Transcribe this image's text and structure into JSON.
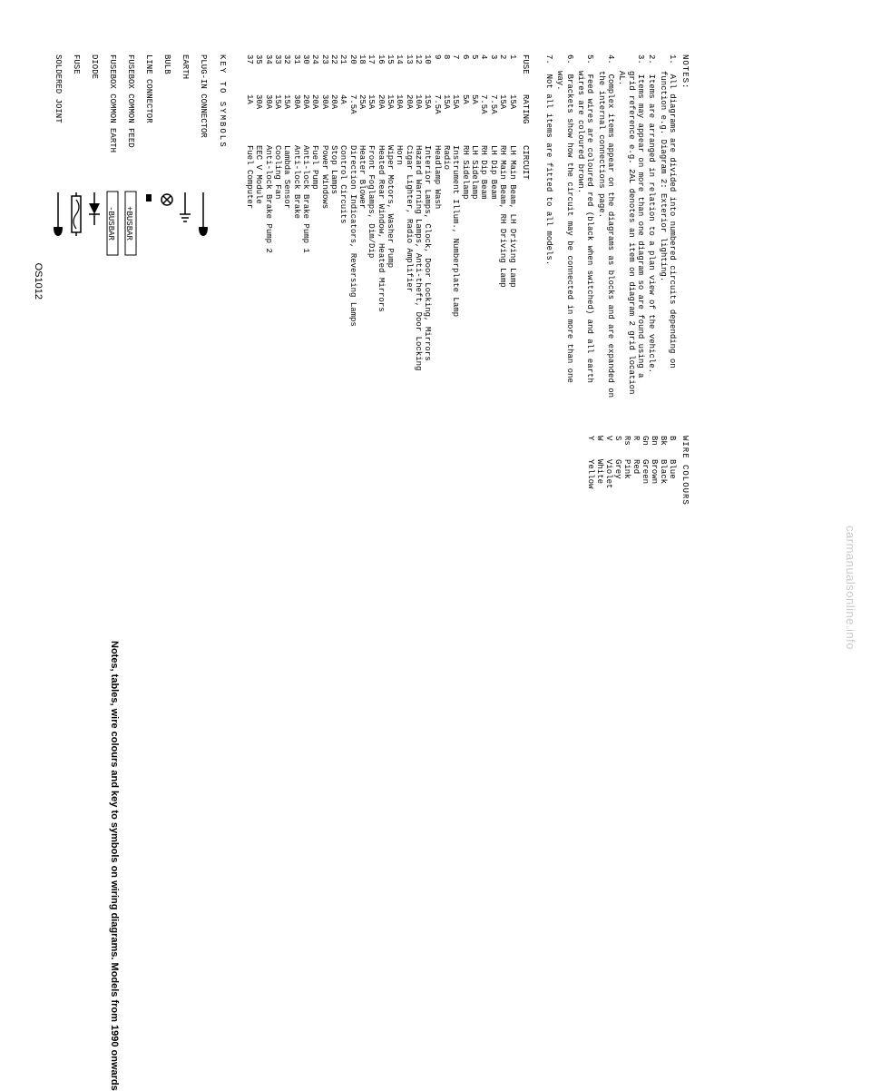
{
  "notes": {
    "header": "NOTES:",
    "items": [
      "1.  All diagrams are divided into numbered circuits depending on function e.g. Diagram 2: Exterior lighting.",
      "2.  Items are arranged in relation to a plan view of the vehicle.",
      "3.  Items may appear on more than one diagram so are found using a grid reference e.g. 2AL denotes an item on diagram 2 grid location AL.",
      "4.  Complex items appear on the diagrams as blocks and are expanded on the internal connections page.",
      "5.  Feed wires are coloured red (black when switched) and all earth wires are coloured brown.",
      "6.  Brackets show how the circuit may be connected in more than one way.",
      "7.  Not all items are fitted to all models."
    ]
  },
  "wire_colours": {
    "header": "WIRE COLOURS",
    "rows": [
      {
        "code": "B",
        "name": "Blue"
      },
      {
        "code": "Bk",
        "name": "Black"
      },
      {
        "code": "Bn",
        "name": "Brown"
      },
      {
        "code": "Gn",
        "name": "Green"
      },
      {
        "code": "R",
        "name": "Red"
      },
      {
        "code": "Rs",
        "name": "Pink"
      },
      {
        "code": "S",
        "name": "Grey"
      },
      {
        "code": "V",
        "name": "Violet"
      },
      {
        "code": "W",
        "name": "White"
      },
      {
        "code": "Y",
        "name": "Yellow"
      }
    ]
  },
  "fuse_table": {
    "headers": [
      "FUSE",
      "RATING",
      "CIRCUIT"
    ],
    "rows": [
      [
        "1",
        "15A",
        "LH Main Beam, LH Driving Lamp"
      ],
      [
        "2",
        "15A",
        "RH Main Beam, RH Driving Lamp"
      ],
      [
        "3",
        "7.5A",
        "LH Dip Beam"
      ],
      [
        "4",
        "7.5A",
        "RH Dip Beam"
      ],
      [
        "5",
        "5A",
        "LH Sidelamp"
      ],
      [
        "6",
        "5A",
        "RH Sidelamp"
      ],
      [
        "7",
        "15A",
        "Instrument Illum., Numberplate Lamp"
      ],
      [
        "8",
        "15A",
        "Radio"
      ],
      [
        "9",
        "7.5A",
        "Headlamp Wash"
      ],
      [
        "10",
        "15A",
        "Interior Lamps, Clock, Door Locking, Mirrors"
      ],
      [
        "12",
        "10A",
        "Hazard Warning Lamps, Anti-theft, Door Locking"
      ],
      [
        "13",
        "20A",
        "Cigar Lighter, Radio Amplifier"
      ],
      [
        "14",
        "10A",
        "Horn"
      ],
      [
        "15",
        "15A",
        "Wiper Motors, Washer Pump"
      ],
      [
        "16",
        "20A",
        "Heated Rear Window, Heated Mirrors"
      ],
      [
        "17",
        "15A",
        "Front Foglamps, Dim/Dip"
      ],
      [
        "18",
        "25A",
        "Heater Blower"
      ],
      [
        "20",
        "7.5A",
        "Direction Indicators, Reversing Lamps"
      ],
      [
        "21",
        "4A",
        "Control Circuits"
      ],
      [
        "22",
        "20A",
        "Stop Lamps"
      ],
      [
        "23",
        "30A",
        "Power Windows"
      ],
      [
        "24",
        "20A",
        "Fuel Pump"
      ],
      [
        "30",
        "20A",
        "Anti-lock Brake Pump 1"
      ],
      [
        "31",
        "30A",
        "Anti-lock Brake"
      ],
      [
        "32",
        "15A",
        "Lambda Sensor"
      ],
      [
        "33",
        "15A",
        "Cooling Fan"
      ],
      [
        "34",
        "30A",
        "Anti-lock Brake Pump 2"
      ],
      [
        "35",
        "30A",
        "EEC V Module"
      ],
      [
        "37",
        "1A",
        "Fuel Computer"
      ]
    ]
  },
  "symbols": {
    "title": "KEY TO SYMBOLS",
    "rows": [
      {
        "label": "PLUG-IN CONNECTOR",
        "glyph": "plugin"
      },
      {
        "label": "EARTH",
        "glyph": "earth"
      },
      {
        "label": "BULB",
        "glyph": "bulb"
      },
      {
        "label": "LINE CONNECTOR",
        "glyph": "lineconn"
      },
      {
        "label": "FUSEBOX COMMON FEED",
        "glyph": "busbar-plus"
      },
      {
        "label": "FUSEBOX COMMON EARTH",
        "glyph": "busbar-minus"
      },
      {
        "label": "DIODE",
        "glyph": "diode"
      },
      {
        "label": "FUSE",
        "glyph": "fuse"
      },
      {
        "label": "SOLDERED JOINT",
        "glyph": "solder"
      }
    ],
    "figcode": "OS1012"
  },
  "caption": "Notes, tables, wire colours and key to symbols on wiring diagrams. Models from 1990 onwards",
  "watermark": "carmanualsonline.info"
}
